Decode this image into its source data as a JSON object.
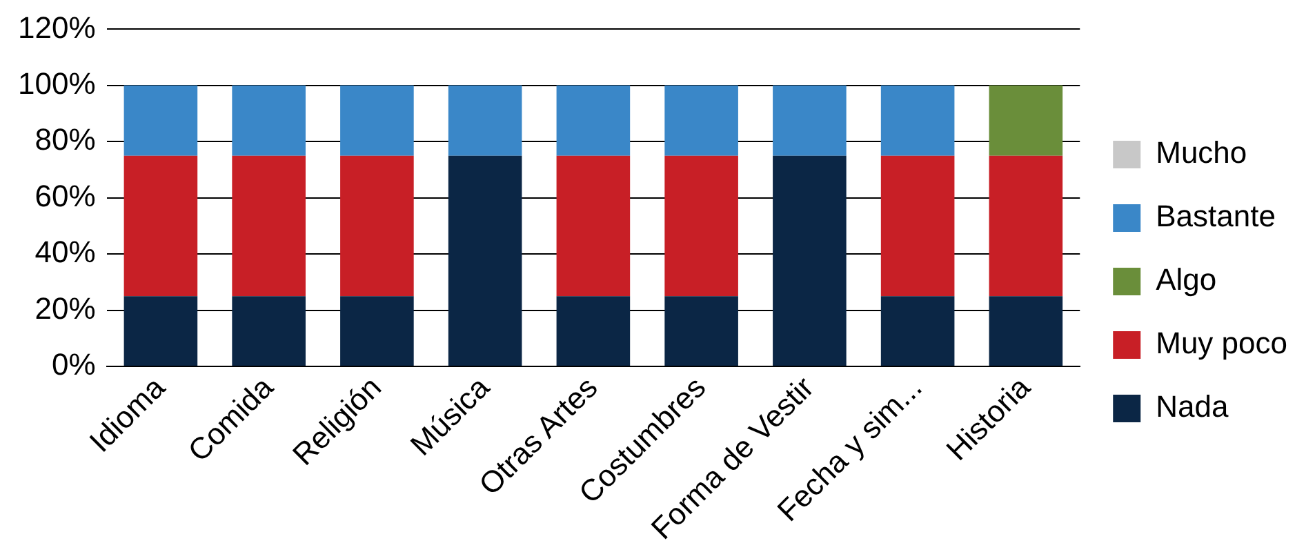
{
  "chart_data": {
    "type": "bar",
    "stacked": true,
    "categories": [
      "Idioma",
      "Comida",
      "Religión",
      "Música",
      "Otras Artes",
      "Costumbres",
      "Forma de Vestir",
      "Fecha y sim...",
      "Historia"
    ],
    "series": [
      {
        "name": "Nada",
        "color": "#0b2645",
        "values": [
          25,
          25,
          25,
          75,
          25,
          25,
          75,
          25,
          25
        ]
      },
      {
        "name": "Muy poco",
        "color": "#c81f26",
        "values": [
          50,
          50,
          50,
          0,
          50,
          50,
          0,
          50,
          50
        ]
      },
      {
        "name": "Algo",
        "color": "#6a8e3a",
        "values": [
          0,
          0,
          0,
          0,
          0,
          0,
          0,
          0,
          25
        ]
      },
      {
        "name": "Bastante",
        "color": "#3a87c8",
        "values": [
          25,
          25,
          25,
          25,
          25,
          25,
          25,
          25,
          0
        ]
      },
      {
        "name": "Mucho",
        "color": "#c8c8c8",
        "values": [
          0,
          0,
          0,
          0,
          0,
          0,
          0,
          0,
          0
        ]
      }
    ],
    "ylim": [
      0,
      120
    ],
    "yticks": [
      {
        "value": 0,
        "label": "0%"
      },
      {
        "value": 20,
        "label": "20%"
      },
      {
        "value": 40,
        "label": "40%"
      },
      {
        "value": 60,
        "label": "60%"
      },
      {
        "value": 80,
        "label": "80%"
      },
      {
        "value": 100,
        "label": "100%"
      },
      {
        "value": 120,
        "label": "120%"
      }
    ],
    "grid": "y",
    "legend": "right"
  }
}
